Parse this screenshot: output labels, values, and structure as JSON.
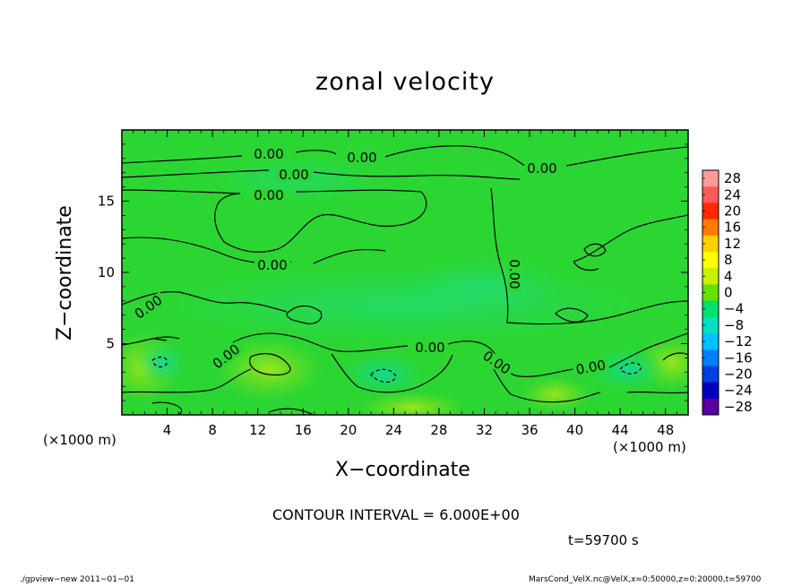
{
  "chart_data": {
    "type": "heatmap",
    "title": "zonal velocity",
    "xlabel": "X−coordinate",
    "ylabel": "Z−coordinate",
    "x_unit": "(×1000 m)",
    "xlim": [
      0,
      50
    ],
    "ylim": [
      0,
      20
    ],
    "x_ticks": [
      4,
      8,
      12,
      16,
      20,
      24,
      28,
      32,
      36,
      40,
      44,
      48
    ],
    "y_ticks": [
      5,
      10,
      15
    ],
    "colorbar": {
      "levels": [
        28,
        24,
        20,
        16,
        12,
        8,
        4,
        0,
        -4,
        -8,
        -12,
        -16,
        -20,
        -24,
        -28
      ],
      "labels": [
        "28",
        "24",
        "20",
        "16",
        "12",
        "8",
        "4",
        "0",
        "−4",
        "−8",
        "−12",
        "−16",
        "−20",
        "−24",
        "−28"
      ],
      "colors": [
        "#ff9a9a",
        "#ff5a5a",
        "#ff2a00",
        "#ff7a00",
        "#ffd000",
        "#ffff00",
        "#c8f000",
        "#66e000",
        "#00e070",
        "#00e0c0",
        "#00c0ff",
        "#0080ff",
        "#0040e0",
        "#0000c0",
        "#5a00a0"
      ]
    },
    "contour_label": "0.00",
    "contour_interval_text": "CONTOUR INTERVAL = 6.000E+00"
  },
  "time_text": "t=59700 s",
  "footer_left": "./gpview−new  2011−01−01",
  "footer_right": "MarsCond_VelX.nc@VelX,x=0:50000,z=0:20000,t=59700",
  "colors": {
    "field_main": "#2bd633",
    "field_light": "#3cdc1e",
    "field_cool": "#1adb6a",
    "field_warm": "#8be21a"
  }
}
